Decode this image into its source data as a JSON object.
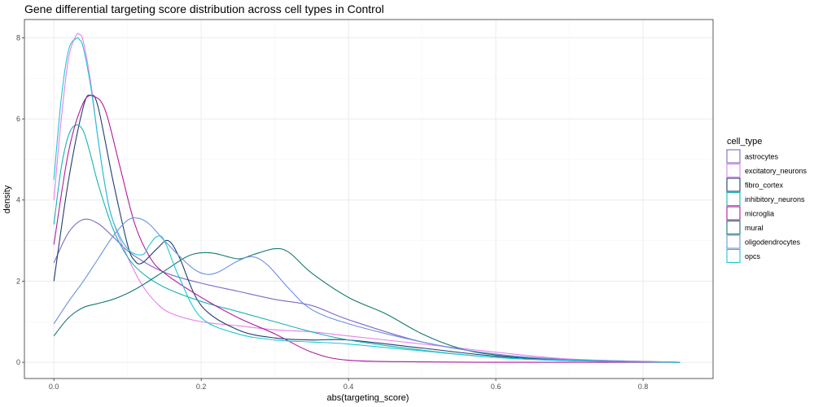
{
  "chart_data": {
    "type": "line",
    "title": "Gene differential targeting score distribution across cell types in Control",
    "xlabel": "abs(targeting_score)",
    "ylabel": "density",
    "xlim": [
      -0.04,
      0.895
    ],
    "ylim": [
      -0.4,
      8.45
    ],
    "x_ticks": [
      0.0,
      0.2,
      0.4,
      0.6,
      0.8
    ],
    "x_tick_labels": [
      "0.0",
      "0.2",
      "0.4",
      "0.6",
      "0.8"
    ],
    "y_ticks": [
      0,
      2,
      4,
      6,
      8
    ],
    "y_tick_labels": [
      "0",
      "2",
      "4",
      "6",
      "8"
    ],
    "grid": true,
    "legend": {
      "title": "cell_type",
      "position": "right"
    },
    "series": [
      {
        "name": "astrocytes",
        "color": "#7b68c8",
        "x": [
          0,
          0.02,
          0.04,
          0.06,
          0.08,
          0.1,
          0.12,
          0.14,
          0.16,
          0.2,
          0.25,
          0.3,
          0.35,
          0.4,
          0.5,
          0.6,
          0.7,
          0.85
        ],
        "y": [
          2.45,
          3.2,
          3.52,
          3.42,
          3.1,
          2.75,
          2.5,
          2.3,
          2.15,
          1.95,
          1.75,
          1.55,
          1.4,
          1.05,
          0.5,
          0.2,
          0.07,
          0.0
        ]
      },
      {
        "name": "excitatory_neurons",
        "color": "#e57ff0",
        "x": [
          0,
          0.01,
          0.02,
          0.03,
          0.035,
          0.04,
          0.05,
          0.06,
          0.07,
          0.08,
          0.1,
          0.12,
          0.14,
          0.16,
          0.2,
          0.25,
          0.3,
          0.35,
          0.4,
          0.5,
          0.6,
          0.7,
          0.85
        ],
        "y": [
          4.0,
          6.0,
          7.5,
          8.05,
          8.08,
          7.9,
          6.9,
          5.5,
          4.3,
          3.5,
          2.6,
          1.9,
          1.45,
          1.2,
          1.0,
          0.9,
          0.8,
          0.75,
          0.65,
          0.45,
          0.25,
          0.08,
          0.0
        ]
      },
      {
        "name": "fibro_cortex",
        "color": "#1f3d6e",
        "x": [
          0,
          0.02,
          0.04,
          0.05,
          0.06,
          0.08,
          0.1,
          0.11,
          0.12,
          0.14,
          0.155,
          0.17,
          0.2,
          0.25,
          0.3,
          0.35,
          0.4,
          0.5,
          0.6,
          0.7,
          0.85
        ],
        "y": [
          2.0,
          4.5,
          6.3,
          6.58,
          6.3,
          4.5,
          2.9,
          2.5,
          2.45,
          2.8,
          3.0,
          2.6,
          1.4,
          0.8,
          0.6,
          0.55,
          0.55,
          0.35,
          0.15,
          0.05,
          0.0
        ]
      },
      {
        "name": "inhibitory_neurons",
        "color": "#19b3b3",
        "x": [
          0,
          0.01,
          0.02,
          0.03,
          0.04,
          0.05,
          0.06,
          0.08,
          0.1,
          0.12,
          0.15,
          0.2,
          0.25,
          0.3,
          0.35,
          0.4,
          0.5,
          0.6,
          0.7,
          0.85
        ],
        "y": [
          3.4,
          4.8,
          5.6,
          5.85,
          5.7,
          5.1,
          4.4,
          3.3,
          2.6,
          2.2,
          1.85,
          1.5,
          1.25,
          1.0,
          0.75,
          0.55,
          0.3,
          0.12,
          0.04,
          0.0
        ]
      },
      {
        "name": "microglia",
        "color": "#b2199e",
        "x": [
          0,
          0.02,
          0.04,
          0.055,
          0.07,
          0.09,
          0.11,
          0.13,
          0.15,
          0.2,
          0.25,
          0.3,
          0.35,
          0.4,
          0.5,
          0.6,
          0.7,
          0.85
        ],
        "y": [
          2.9,
          5.2,
          6.4,
          6.55,
          6.2,
          4.8,
          3.4,
          2.6,
          2.2,
          1.6,
          1.1,
          0.7,
          0.25,
          0.05,
          0.01,
          0.0,
          0.0,
          0.0
        ]
      },
      {
        "name": "mural",
        "color": "#137a6e",
        "x": [
          0,
          0.02,
          0.04,
          0.06,
          0.08,
          0.1,
          0.12,
          0.15,
          0.18,
          0.2,
          0.22,
          0.25,
          0.27,
          0.3,
          0.32,
          0.35,
          0.4,
          0.45,
          0.5,
          0.55,
          0.6,
          0.7,
          0.85
        ],
        "y": [
          0.65,
          1.1,
          1.35,
          1.45,
          1.55,
          1.7,
          1.9,
          2.25,
          2.6,
          2.7,
          2.68,
          2.55,
          2.65,
          2.8,
          2.7,
          2.2,
          1.6,
          1.2,
          0.7,
          0.35,
          0.18,
          0.06,
          0.0
        ]
      },
      {
        "name": "oligodendrocytes",
        "color": "#6b8fe0",
        "x": [
          0,
          0.02,
          0.04,
          0.06,
          0.08,
          0.1,
          0.115,
          0.13,
          0.15,
          0.18,
          0.2,
          0.22,
          0.25,
          0.27,
          0.29,
          0.32,
          0.35,
          0.4,
          0.5,
          0.6,
          0.7,
          0.85
        ],
        "y": [
          0.95,
          1.5,
          2.0,
          2.55,
          3.1,
          3.5,
          3.55,
          3.4,
          3.0,
          2.45,
          2.2,
          2.2,
          2.5,
          2.6,
          2.4,
          1.8,
          1.3,
          0.95,
          0.5,
          0.2,
          0.06,
          0.0
        ]
      },
      {
        "name": "opcs",
        "color": "#1ec8d2",
        "x": [
          0,
          0.01,
          0.02,
          0.03,
          0.035,
          0.04,
          0.05,
          0.06,
          0.07,
          0.08,
          0.1,
          0.12,
          0.13,
          0.14,
          0.15,
          0.17,
          0.2,
          0.25,
          0.3,
          0.35,
          0.4,
          0.5,
          0.6,
          0.7,
          0.85
        ],
        "y": [
          4.5,
          6.5,
          7.7,
          7.98,
          7.95,
          7.75,
          6.8,
          5.5,
          4.3,
          3.5,
          2.8,
          2.65,
          2.9,
          3.1,
          3.0,
          2.1,
          1.1,
          0.7,
          0.55,
          0.5,
          0.45,
          0.28,
          0.12,
          0.04,
          0.0
        ]
      }
    ]
  }
}
